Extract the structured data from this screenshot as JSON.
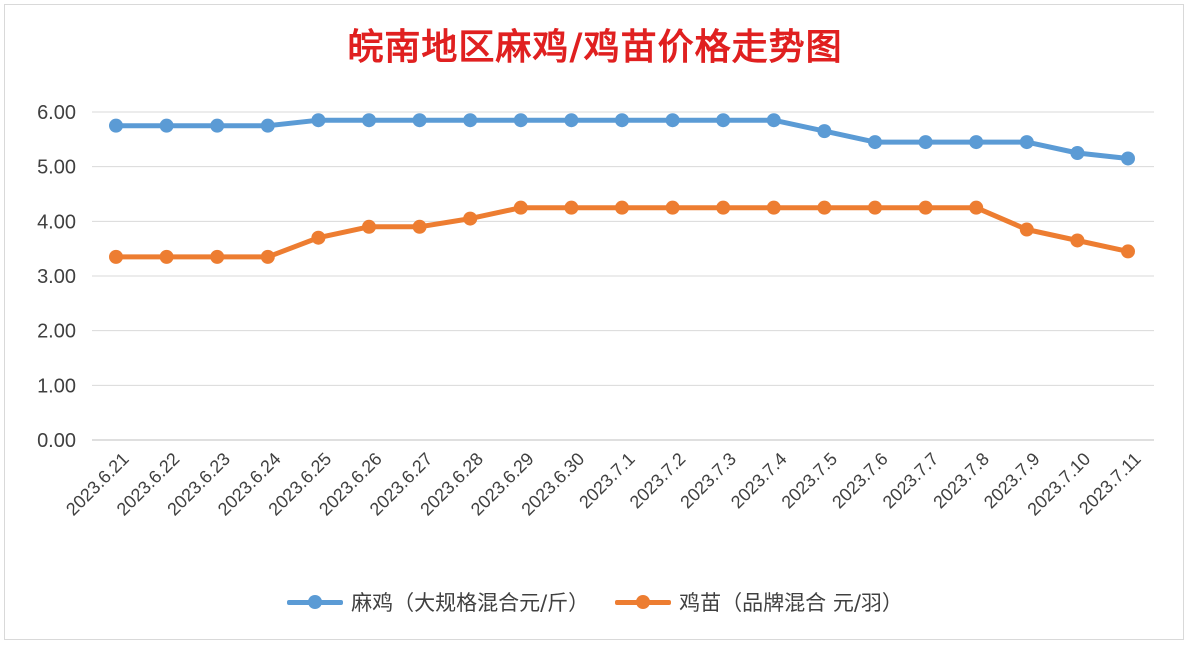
{
  "chart_data": {
    "type": "line",
    "title": "皖南地区麻鸡/鸡苗价格走势图",
    "categories": [
      "2023.6.21",
      "2023.6.22",
      "2023.6.23",
      "2023.6.24",
      "2023.6.25",
      "2023.6.26",
      "2023.6.27",
      "2023.6.28",
      "2023.6.29",
      "2023.6.30",
      "2023.7.1",
      "2023.7.2",
      "2023.7.3",
      "2023.7.4",
      "2023.7.5",
      "2023.7.6",
      "2023.7.7",
      "2023.7.8",
      "2023.7.9",
      "2023.7.10",
      "2023.7.11"
    ],
    "ylim": [
      0,
      6
    ],
    "yticks": [
      "0.00",
      "1.00",
      "2.00",
      "3.00",
      "4.00",
      "5.00",
      "6.00"
    ],
    "grid": true,
    "legend_position": "bottom",
    "series": [
      {
        "name": "麻鸡（大规格混合元/斤）",
        "color": "#5b9bd5",
        "values": [
          5.75,
          5.75,
          5.75,
          5.75,
          5.85,
          5.85,
          5.85,
          5.85,
          5.85,
          5.85,
          5.85,
          5.85,
          5.85,
          5.85,
          5.65,
          5.45,
          5.45,
          5.45,
          5.45,
          5.25,
          5.15
        ]
      },
      {
        "name": "鸡苗（品牌混合 元/羽）",
        "color": "#ed7d31",
        "values": [
          3.35,
          3.35,
          3.35,
          3.35,
          3.7,
          3.9,
          3.9,
          4.05,
          4.25,
          4.25,
          4.25,
          4.25,
          4.25,
          4.25,
          4.25,
          4.25,
          4.25,
          4.25,
          3.85,
          3.65,
          3.45
        ]
      }
    ]
  }
}
